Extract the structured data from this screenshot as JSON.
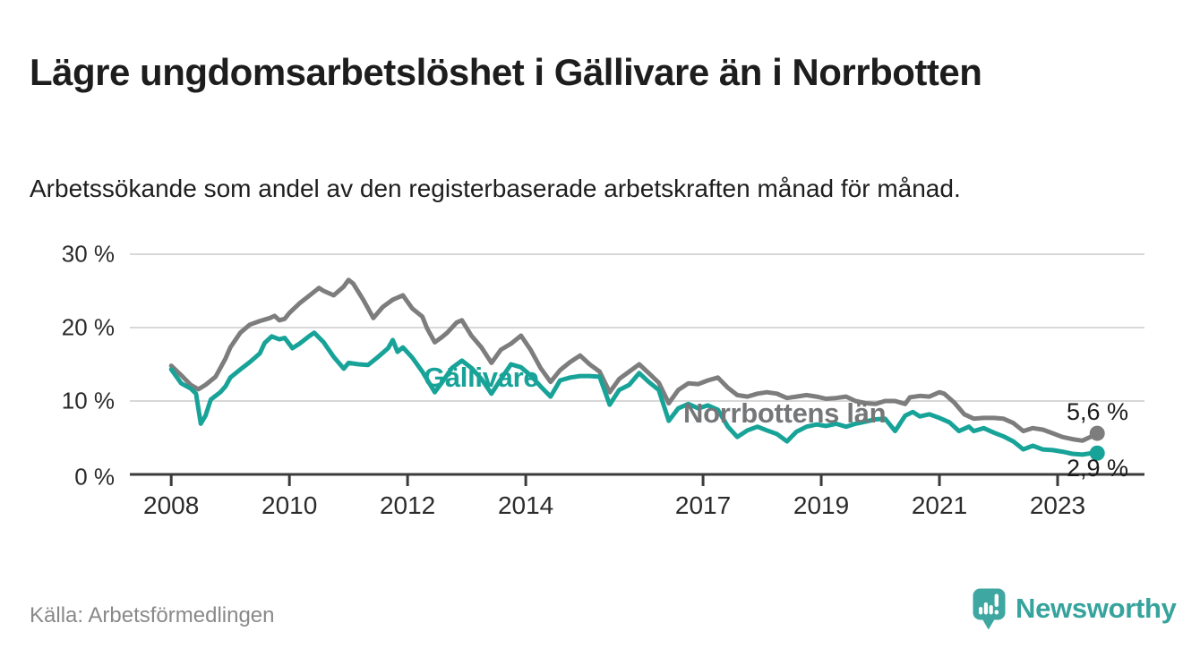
{
  "header": {
    "title": "Lägre ungdomsarbetslöshet i Gällivare än i Norrbotten",
    "subtitle": "Arbetssökande som andel av den registerbaserade arbetskraften månad för månad."
  },
  "chart_data": {
    "type": "line",
    "title": "Lägre ungdomsarbetslöshet i Gällivare än i Norrbotten",
    "xlabel": "",
    "ylabel": "Arbetssökande som andel av den registerbaserade arbetskraften (%)",
    "unit": "%",
    "ylim": [
      0,
      30
    ],
    "xlim": [
      2007.3,
      2024.47
    ],
    "grid": true,
    "legend_position": "inline-annotations",
    "yticks": {
      "values": [
        0,
        10,
        20,
        30
      ],
      "labels": [
        "0 %",
        "10 %",
        "20 %",
        "30 %"
      ]
    },
    "xticks": {
      "values": [
        2008,
        2010,
        2012,
        2014,
        2017,
        2019,
        2021,
        2023
      ],
      "labels": [
        "2008",
        "2010",
        "2012",
        "2014",
        "2017",
        "2019",
        "2021",
        "2023"
      ]
    },
    "series": [
      {
        "name": "Norrbottens län",
        "color": "#7d7d7e",
        "end_label": "5,6 %",
        "end_value": 5.6,
        "x": [
          2008.0,
          2008.17,
          2008.33,
          2008.46,
          2008.58,
          2008.75,
          2008.92,
          2009.0,
          2009.17,
          2009.33,
          2009.5,
          2009.67,
          2009.75,
          2009.83,
          2009.92,
          2010.0,
          2010.17,
          2010.33,
          2010.5,
          2010.58,
          2010.75,
          2010.92,
          2011.0,
          2011.08,
          2011.25,
          2011.42,
          2011.58,
          2011.75,
          2011.92,
          2012.08,
          2012.25,
          2012.33,
          2012.46,
          2012.58,
          2012.67,
          2012.83,
          2012.92,
          2013.08,
          2013.25,
          2013.42,
          2013.58,
          2013.75,
          2013.92,
          2014.08,
          2014.25,
          2014.42,
          2014.58,
          2014.75,
          2014.92,
          2015.08,
          2015.25,
          2015.42,
          2015.58,
          2015.75,
          2015.92,
          2016.08,
          2016.25,
          2016.42,
          2016.58,
          2016.75,
          2016.92,
          2017.08,
          2017.25,
          2017.42,
          2017.58,
          2017.75,
          2017.92,
          2018.08,
          2018.25,
          2018.42,
          2018.58,
          2018.75,
          2018.92,
          2019.08,
          2019.25,
          2019.42,
          2019.58,
          2019.75,
          2019.92,
          2020.08,
          2020.25,
          2020.42,
          2020.5,
          2020.67,
          2020.83,
          2021.0,
          2021.08,
          2021.25,
          2021.42,
          2021.58,
          2021.75,
          2021.92,
          2022.08,
          2022.25,
          2022.42,
          2022.58,
          2022.75,
          2022.92,
          2023.08,
          2023.25,
          2023.42,
          2023.58,
          2023.67
        ],
        "values": [
          14.8,
          13.5,
          12.2,
          11.6,
          12.2,
          13.3,
          15.8,
          17.3,
          19.3,
          20.4,
          20.9,
          21.3,
          21.6,
          21.0,
          21.2,
          22.0,
          23.3,
          24.3,
          25.4,
          25.0,
          24.4,
          25.6,
          26.5,
          26.0,
          23.8,
          21.3,
          22.8,
          23.8,
          24.4,
          22.6,
          21.5,
          19.9,
          18.0,
          18.7,
          19.3,
          20.7,
          21.0,
          18.9,
          17.3,
          15.2,
          17.0,
          17.8,
          18.9,
          17.0,
          14.5,
          12.6,
          14.2,
          15.3,
          16.2,
          15.0,
          14.0,
          11.2,
          13.0,
          14.0,
          15.0,
          13.8,
          12.5,
          9.7,
          11.5,
          12.4,
          12.3,
          12.8,
          13.2,
          11.8,
          10.8,
          10.6,
          11.0,
          11.2,
          11.0,
          10.4,
          10.6,
          10.8,
          10.6,
          10.3,
          10.4,
          10.6,
          10.0,
          9.7,
          9.6,
          10.0,
          10.0,
          9.6,
          10.5,
          10.7,
          10.6,
          11.2,
          11.0,
          9.8,
          8.2,
          7.6,
          7.7,
          7.7,
          7.6,
          7.0,
          5.9,
          6.3,
          6.1,
          5.6,
          5.1,
          4.8,
          4.6,
          5.2,
          5.6
        ]
      },
      {
        "name": "Gällivare",
        "color": "#18a399",
        "end_label": "2,9 %",
        "end_value": 2.9,
        "x": [
          2008.0,
          2008.17,
          2008.33,
          2008.42,
          2008.5,
          2008.58,
          2008.67,
          2008.83,
          2008.92,
          2009.0,
          2009.17,
          2009.33,
          2009.5,
          2009.58,
          2009.7,
          2009.83,
          2009.92,
          2010.05,
          2010.17,
          2010.33,
          2010.42,
          2010.58,
          2010.75,
          2010.92,
          2011.0,
          2011.17,
          2011.33,
          2011.5,
          2011.67,
          2011.75,
          2011.83,
          2011.92,
          2012.08,
          2012.25,
          2012.46,
          2012.58,
          2012.75,
          2012.92,
          2013.08,
          2013.25,
          2013.42,
          2013.58,
          2013.75,
          2013.92,
          2014.08,
          2014.25,
          2014.42,
          2014.58,
          2014.75,
          2014.92,
          2015.08,
          2015.25,
          2015.42,
          2015.58,
          2015.75,
          2015.92,
          2016.08,
          2016.25,
          2016.42,
          2016.58,
          2016.75,
          2016.92,
          2017.08,
          2017.25,
          2017.42,
          2017.58,
          2017.75,
          2017.92,
          2018.08,
          2018.25,
          2018.42,
          2018.58,
          2018.75,
          2018.92,
          2019.08,
          2019.25,
          2019.42,
          2019.58,
          2019.75,
          2019.92,
          2020.08,
          2020.25,
          2020.42,
          2020.55,
          2020.67,
          2020.83,
          2021.0,
          2021.17,
          2021.33,
          2021.5,
          2021.58,
          2021.75,
          2021.92,
          2022.08,
          2022.25,
          2022.42,
          2022.58,
          2022.75,
          2022.92,
          2023.08,
          2023.25,
          2023.42,
          2023.58,
          2023.67
        ],
        "values": [
          14.3,
          12.4,
          11.7,
          11.0,
          6.9,
          8.0,
          10.2,
          11.2,
          12.0,
          13.2,
          14.3,
          15.3,
          16.5,
          17.9,
          18.8,
          18.4,
          18.6,
          17.2,
          17.8,
          18.8,
          19.3,
          18.0,
          16.0,
          14.4,
          15.2,
          15.0,
          14.9,
          16.0,
          17.2,
          18.3,
          16.7,
          17.3,
          15.9,
          14.0,
          11.2,
          12.5,
          14.5,
          15.5,
          14.5,
          13.0,
          11.0,
          13.0,
          15.0,
          14.6,
          13.5,
          12.0,
          10.6,
          12.8,
          13.2,
          13.4,
          13.4,
          13.3,
          9.5,
          11.5,
          12.2,
          13.8,
          12.6,
          11.5,
          7.3,
          9.0,
          9.6,
          9.0,
          9.4,
          8.8,
          6.5,
          5.1,
          6.0,
          6.5,
          6.0,
          5.5,
          4.5,
          5.8,
          6.5,
          6.8,
          6.6,
          6.9,
          6.5,
          6.9,
          7.2,
          7.5,
          7.6,
          5.9,
          8.0,
          8.5,
          7.9,
          8.2,
          7.7,
          7.1,
          5.9,
          6.5,
          5.9,
          6.3,
          5.7,
          5.2,
          4.5,
          3.4,
          3.9,
          3.4,
          3.3,
          3.1,
          2.8,
          2.7,
          2.9,
          2.9
        ]
      }
    ]
  },
  "annotations": {
    "gallivare_label": "Gällivare",
    "norrbotten_label": "Norrbottens län",
    "end_label_norrbotten": "5,6 %",
    "end_label_gallivare": "2,9 %"
  },
  "footer": {
    "source": "Källa: Arbetsförmedlingen",
    "logo_text": "Newsworthy"
  },
  "colors": {
    "teal_line": "#18a399",
    "gray_line": "#7d7d7e",
    "logo_teal": "#3fa7a1",
    "logo_text_teal": "#36a39d",
    "gridline": "#d8d8d8",
    "axis": "#3b3b3b"
  }
}
